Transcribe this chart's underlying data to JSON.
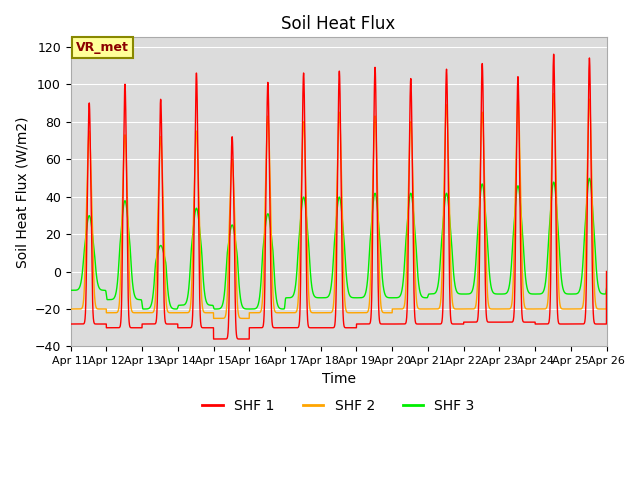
{
  "title": "Soil Heat Flux",
  "xlabel": "Time",
  "ylabel": "Soil Heat Flux (W/m2)",
  "ylim": [
    -40,
    125
  ],
  "yticks": [
    -40,
    -20,
    0,
    20,
    40,
    60,
    80,
    100,
    120
  ],
  "x_tick_labels": [
    "Apr 11",
    "Apr 12",
    "Apr 13",
    "Apr 14",
    "Apr 15",
    "Apr 16",
    "Apr 17",
    "Apr 18",
    "Apr 19",
    "Apr 20",
    "Apr 21",
    "Apr 22",
    "Apr 23",
    "Apr 24",
    "Apr 25",
    "Apr 26"
  ],
  "colors": {
    "SHF1": "#FF0000",
    "SHF2": "#FFA500",
    "SHF3": "#00EE00"
  },
  "background_color": "#DCDCDC",
  "legend_label": "VR_met",
  "legend_series": [
    "SHF 1",
    "SHF 2",
    "SHF 3"
  ],
  "title_fontsize": 12,
  "axis_label_fontsize": 10,
  "shf1_peaks": [
    90,
    100,
    92,
    106,
    72,
    101,
    106,
    107,
    109,
    103,
    108,
    111,
    104,
    116,
    114
  ],
  "shf2_peaks": [
    75,
    73,
    72,
    75,
    60,
    83,
    80,
    85,
    83,
    80,
    89,
    85,
    93,
    95,
    92
  ],
  "shf3_peaks": [
    30,
    38,
    14,
    34,
    25,
    31,
    40,
    40,
    42,
    42,
    42,
    47,
    46,
    48,
    50
  ],
  "shf1_night": [
    -28,
    -30,
    -28,
    -30,
    -36,
    -30,
    -30,
    -30,
    -28,
    -28,
    -28,
    -27,
    -27,
    -28,
    -28
  ],
  "shf2_night": [
    -20,
    -22,
    -22,
    -22,
    -25,
    -22,
    -22,
    -22,
    -22,
    -20,
    -20,
    -20,
    -20,
    -20,
    -20
  ],
  "shf3_night": [
    -10,
    -15,
    -20,
    -18,
    -20,
    -20,
    -14,
    -14,
    -14,
    -14,
    -12,
    -12,
    -12,
    -12,
    -12
  ]
}
